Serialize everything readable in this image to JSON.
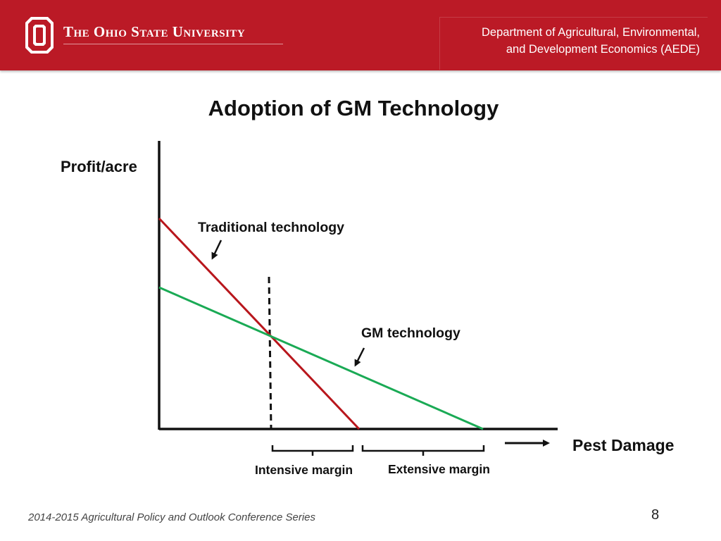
{
  "header": {
    "university": "The Ohio State University",
    "department_line1": "Department of Agricultural, Environmental,",
    "department_line2": "and Development Economics (AEDE)",
    "accent_color": "#bb1a26"
  },
  "slide": {
    "title": "Adoption of GM Technology",
    "page_number": "8"
  },
  "diagram": {
    "y_axis_label": "Profit/acre",
    "x_axis_label": "Pest Damage",
    "traditional_label": "Traditional technology",
    "gm_label": "GM technology",
    "intensive_margin_label": "Intensive margin",
    "extensive_margin_label": "Extensive margin",
    "traditional_color": "#b8161c",
    "gm_color": "#1aaa55"
  },
  "footer": {
    "text": "2014-2015 Agricultural Policy and Outlook Conference Series"
  }
}
